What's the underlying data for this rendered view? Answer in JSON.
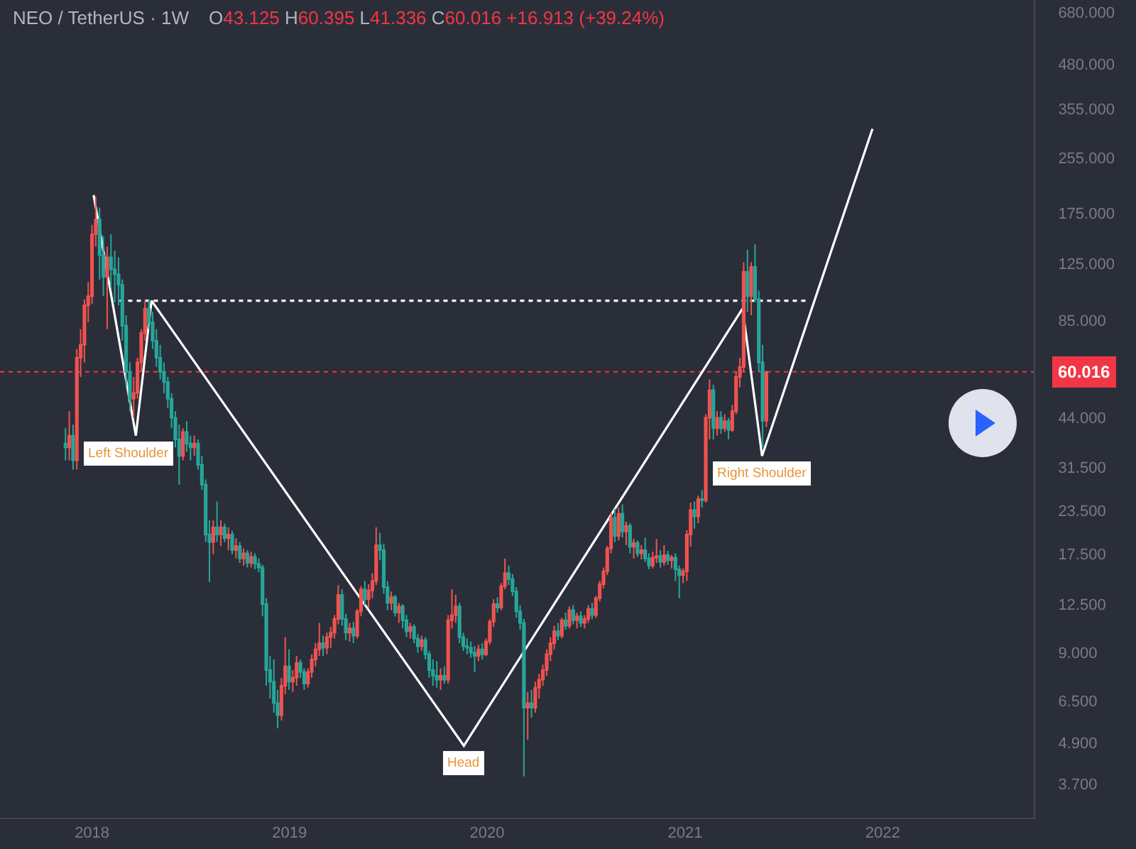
{
  "chart_data": {
    "type": "candlestick",
    "title": "NEO / TetherUS · 1W",
    "subtitle": "O43.125 H60.395 L41.336 C60.016 +16.913 (+39.24%)",
    "x": [
      "2017-11-13",
      "2017-11-20",
      "2017-11-27",
      "2017-12-04",
      "2017-12-11",
      "2017-12-18",
      "2017-12-25",
      "2018-01-01",
      "2018-01-08",
      "2018-01-15",
      "2018-01-22",
      "2018-01-29",
      "2018-02-05",
      "2018-02-12",
      "2018-02-19",
      "2018-02-26",
      "2018-03-05",
      "2018-03-12",
      "2018-03-19",
      "2018-03-26",
      "2018-04-02",
      "2018-04-09",
      "2018-04-16",
      "2018-04-23",
      "2018-04-30",
      "2018-05-07",
      "2018-05-14",
      "2018-05-21",
      "2018-05-28",
      "2018-06-04",
      "2018-06-11",
      "2018-06-18",
      "2018-06-25",
      "2018-07-02",
      "2018-07-09",
      "2018-07-16",
      "2018-07-23",
      "2018-07-30",
      "2018-08-06",
      "2018-08-13",
      "2018-08-20",
      "2018-08-27",
      "2018-09-03",
      "2018-09-10",
      "2018-09-17",
      "2018-09-24",
      "2018-10-01",
      "2018-10-08",
      "2018-10-15",
      "2018-10-22",
      "2018-10-29",
      "2018-11-05",
      "2018-11-12",
      "2018-11-19",
      "2018-11-26",
      "2018-12-03",
      "2018-12-10",
      "2018-12-17",
      "2018-12-24",
      "2018-12-31",
      "2019-01-07",
      "2019-01-14",
      "2019-01-21",
      "2019-01-28",
      "2019-02-04",
      "2019-02-11",
      "2019-02-18",
      "2019-02-25",
      "2019-03-04",
      "2019-03-11",
      "2019-03-18",
      "2019-03-25",
      "2019-04-01",
      "2019-04-08",
      "2019-04-15",
      "2019-04-22",
      "2019-04-29",
      "2019-05-06",
      "2019-05-13",
      "2019-05-20",
      "2019-05-27",
      "2019-06-03",
      "2019-06-10",
      "2019-06-17",
      "2019-06-24",
      "2019-07-01",
      "2019-07-08",
      "2019-07-15",
      "2019-07-22",
      "2019-07-29",
      "2019-08-05",
      "2019-08-12",
      "2019-08-19",
      "2019-08-26",
      "2019-09-02",
      "2019-09-09",
      "2019-09-16",
      "2019-09-23",
      "2019-09-30",
      "2019-10-07",
      "2019-10-14",
      "2019-10-21",
      "2019-10-28",
      "2019-11-04",
      "2019-11-11",
      "2019-11-18",
      "2019-11-25",
      "2019-12-02",
      "2019-12-09",
      "2019-12-16",
      "2019-12-23",
      "2019-12-30",
      "2020-01-06",
      "2020-01-13",
      "2020-01-20",
      "2020-01-27",
      "2020-02-03",
      "2020-02-10",
      "2020-02-17",
      "2020-02-24",
      "2020-03-02",
      "2020-03-09",
      "2020-03-16",
      "2020-03-23",
      "2020-03-30",
      "2020-04-06",
      "2020-04-13",
      "2020-04-20",
      "2020-04-27",
      "2020-05-04",
      "2020-05-11",
      "2020-05-18",
      "2020-05-25",
      "2020-06-01",
      "2020-06-08",
      "2020-06-15",
      "2020-06-22",
      "2020-06-29",
      "2020-07-06",
      "2020-07-13",
      "2020-07-20",
      "2020-07-27",
      "2020-08-03",
      "2020-08-10",
      "2020-08-17",
      "2020-08-24",
      "2020-08-31",
      "2020-09-07",
      "2020-09-14",
      "2020-09-21",
      "2020-09-28",
      "2020-10-05",
      "2020-10-12",
      "2020-10-19",
      "2020-10-26",
      "2020-11-02",
      "2020-11-09",
      "2020-11-16",
      "2020-11-23",
      "2020-11-30",
      "2020-12-07",
      "2020-12-14",
      "2020-12-21",
      "2020-12-28",
      "2021-01-04",
      "2021-01-11",
      "2021-01-18",
      "2021-01-25",
      "2021-02-01",
      "2021-02-08",
      "2021-02-15",
      "2021-02-22",
      "2021-03-01",
      "2021-03-08",
      "2021-03-15",
      "2021-03-22",
      "2021-03-29",
      "2021-04-05",
      "2021-04-12",
      "2021-04-19",
      "2021-04-26",
      "2021-05-03",
      "2021-05-10",
      "2021-05-17",
      "2021-05-24",
      "2021-05-31"
    ],
    "ohlc": [
      [
        37,
        41,
        33,
        36
      ],
      [
        36,
        46,
        33,
        39
      ],
      [
        39,
        42,
        31,
        33
      ],
      [
        33,
        70,
        31,
        66
      ],
      [
        66,
        80,
        58,
        72
      ],
      [
        72,
        98,
        64,
        94
      ],
      [
        94,
        110,
        84,
        100
      ],
      [
        100,
        162,
        95,
        152
      ],
      [
        152,
        196,
        140,
        168
      ],
      [
        168,
        182,
        112,
        132
      ],
      [
        132,
        150,
        100,
        114
      ],
      [
        114,
        140,
        80,
        130
      ],
      [
        130,
        152,
        106,
        120
      ],
      [
        120,
        136,
        96,
        116
      ],
      [
        116,
        130,
        94,
        108
      ],
      [
        108,
        112,
        74,
        82
      ],
      [
        82,
        88,
        54,
        60
      ],
      [
        60,
        64,
        46,
        50
      ],
      [
        50,
        58,
        44,
        52
      ],
      [
        52,
        66,
        50,
        64
      ],
      [
        64,
        80,
        60,
        78
      ],
      [
        78,
        97,
        74,
        92
      ],
      [
        92,
        98,
        80,
        84
      ],
      [
        84,
        90,
        70,
        74
      ],
      [
        74,
        80,
        62,
        66
      ],
      [
        66,
        72,
        57,
        60
      ],
      [
        60,
        64,
        52,
        56
      ],
      [
        56,
        58,
        47,
        50
      ],
      [
        50,
        52,
        41,
        44
      ],
      [
        44,
        46,
        36,
        38
      ],
      [
        38,
        42,
        28,
        34
      ],
      [
        34,
        41,
        33,
        40
      ],
      [
        40,
        43,
        35,
        37
      ],
      [
        37,
        39,
        33,
        36
      ],
      [
        36,
        39,
        34,
        37
      ],
      [
        37,
        38,
        31,
        32
      ],
      [
        32,
        34,
        27,
        28
      ],
      [
        28,
        29,
        19,
        20
      ],
      [
        20,
        22,
        14.5,
        19
      ],
      [
        19,
        22,
        17.5,
        21
      ],
      [
        21,
        25,
        19,
        20
      ],
      [
        20,
        22,
        18.5,
        21
      ],
      [
        21,
        21.5,
        19,
        19.5
      ],
      [
        19.5,
        21,
        18,
        20
      ],
      [
        20,
        20.5,
        17.5,
        18
      ],
      [
        18,
        19.5,
        17,
        18.5
      ],
      [
        18.5,
        19,
        16.5,
        17
      ],
      [
        17,
        18.2,
        16.2,
        17.6
      ],
      [
        17.6,
        18,
        16,
        16.5
      ],
      [
        16.5,
        17.8,
        16,
        17.2
      ],
      [
        17.2,
        17.6,
        15.8,
        16.4
      ],
      [
        16.4,
        17,
        15.5,
        16
      ],
      [
        16,
        16.3,
        11.5,
        12.5
      ],
      [
        12.5,
        13,
        7.2,
        8
      ],
      [
        8,
        8.8,
        6.6,
        7.4
      ],
      [
        7.4,
        8.6,
        6,
        6.4
      ],
      [
        6.4,
        7,
        5.4,
        5.9
      ],
      [
        5.9,
        7.6,
        5.7,
        7.2
      ],
      [
        7.2,
        10,
        6.8,
        8.2
      ],
      [
        8.2,
        9.2,
        7,
        7.4
      ],
      [
        7.4,
        8,
        6.9,
        7.6
      ],
      [
        7.6,
        8.8,
        7.2,
        8.4
      ],
      [
        8.4,
        8.6,
        7.6,
        7.9
      ],
      [
        7.9,
        8.1,
        7,
        7.3
      ],
      [
        7.3,
        8.1,
        7.1,
        7.9
      ],
      [
        7.9,
        8.9,
        7.6,
        8.6
      ],
      [
        8.6,
        9.6,
        8.2,
        9.2
      ],
      [
        9.2,
        11,
        8.8,
        9.6
      ],
      [
        9.6,
        10.1,
        8.8,
        9.3
      ],
      [
        9.3,
        10.3,
        8.9,
        10
      ],
      [
        10,
        10.7,
        9.3,
        10.3
      ],
      [
        10.3,
        11.6,
        9.9,
        11.3
      ],
      [
        11.3,
        14.2,
        10.9,
        13.3
      ],
      [
        13.3,
        13.8,
        10.8,
        11.3
      ],
      [
        11.3,
        11.7,
        9.8,
        10.3
      ],
      [
        10.3,
        11,
        9.7,
        10.6
      ],
      [
        10.6,
        11.1,
        9.6,
        10.1
      ],
      [
        10.1,
        12.1,
        9.9,
        11.9
      ],
      [
        11.9,
        14.1,
        11.5,
        13.8
      ],
      [
        13.8,
        14.6,
        12.4,
        12.9
      ],
      [
        12.9,
        14.3,
        12.2,
        13.7
      ],
      [
        13.7,
        15.4,
        13,
        14.6
      ],
      [
        14.6,
        21,
        14.2,
        18.6
      ],
      [
        18.6,
        20.2,
        16.8,
        18
      ],
      [
        18,
        18.8,
        13.4,
        14
      ],
      [
        14,
        14.6,
        12,
        12.6
      ],
      [
        12.6,
        13.6,
        12,
        13.1
      ],
      [
        13.1,
        13.3,
        11.5,
        11.8
      ],
      [
        11.8,
        12.6,
        11,
        12.3
      ],
      [
        12.3,
        12.5,
        10.6,
        11.2
      ],
      [
        11.2,
        11.6,
        10,
        10.4
      ],
      [
        10.4,
        11,
        9.9,
        10.7
      ],
      [
        10.7,
        10.9,
        9.6,
        9.9
      ],
      [
        9.9,
        10.2,
        9,
        9.4
      ],
      [
        9.4,
        10.1,
        9.1,
        9.8
      ],
      [
        9.8,
        10,
        8.6,
        8.9
      ],
      [
        8.9,
        9.1,
        7.6,
        8
      ],
      [
        8,
        8.6,
        7.2,
        7.7
      ],
      [
        7.7,
        8.5,
        7.1,
        7.5
      ],
      [
        7.5,
        8.1,
        7,
        7.7
      ],
      [
        7.7,
        8.2,
        7.3,
        7.5
      ],
      [
        7.5,
        11.6,
        7.3,
        11.2
      ],
      [
        11.2,
        13.8,
        10.6,
        11.6
      ],
      [
        11.6,
        13.3,
        11,
        12.3
      ],
      [
        12.3,
        12.6,
        9.6,
        10
      ],
      [
        10,
        10.3,
        9.1,
        9.4
      ],
      [
        9.4,
        9.9,
        8.9,
        9.3
      ],
      [
        9.3,
        9.7,
        8.7,
        9
      ],
      [
        9,
        9.4,
        7.9,
        8.8
      ],
      [
        8.8,
        9.5,
        8.5,
        9.2
      ],
      [
        9.2,
        9.6,
        8.6,
        8.9
      ],
      [
        8.9,
        9.9,
        8.8,
        9.7
      ],
      [
        9.7,
        11.3,
        9.5,
        11.1
      ],
      [
        11.1,
        12.9,
        10.7,
        12.5
      ],
      [
        12.5,
        13.1,
        11.8,
        12.2
      ],
      [
        12.2,
        14.4,
        12,
        14.1
      ],
      [
        14.1,
        17,
        13.8,
        15.4
      ],
      [
        15.4,
        16.2,
        14.2,
        14.8
      ],
      [
        14.8,
        15.3,
        13.2,
        13.6
      ],
      [
        13.6,
        14,
        11.4,
        11.9
      ],
      [
        11.9,
        12.4,
        10.5,
        11
      ],
      [
        11,
        11.3,
        3.9,
        6.2
      ],
      [
        6.2,
        6.9,
        5,
        6.4
      ],
      [
        6.4,
        7,
        5.8,
        6.2
      ],
      [
        6.2,
        7.4,
        6,
        7.1
      ],
      [
        7.1,
        7.8,
        6.6,
        7.5
      ],
      [
        7.5,
        8.3,
        7.2,
        8
      ],
      [
        8,
        9.2,
        7.7,
        8.9
      ],
      [
        8.9,
        10,
        8.5,
        9.6
      ],
      [
        9.6,
        10.8,
        9.2,
        10.4
      ],
      [
        10.4,
        11,
        9.8,
        10.1
      ],
      [
        10.1,
        11.4,
        9.9,
        11.2
      ],
      [
        11.2,
        11.8,
        10.5,
        10.8
      ],
      [
        10.8,
        12.3,
        10.6,
        12
      ],
      [
        12,
        12.4,
        10.9,
        11.2
      ],
      [
        11.2,
        11.8,
        10.6,
        11.5
      ],
      [
        11.5,
        11.9,
        10.7,
        11
      ],
      [
        11,
        11.6,
        10.6,
        11.3
      ],
      [
        11.3,
        12.4,
        11,
        12.1
      ],
      [
        12.1,
        12.6,
        11.3,
        11.6
      ],
      [
        11.6,
        13.2,
        11.4,
        13
      ],
      [
        13,
        14.6,
        12.7,
        14.3
      ],
      [
        14.3,
        16,
        13.9,
        15.6
      ],
      [
        15.6,
        18.5,
        15.2,
        18.2
      ],
      [
        18.2,
        23.2,
        17.6,
        22.4
      ],
      [
        22.4,
        23.8,
        19,
        19.8
      ],
      [
        19.8,
        24,
        19.2,
        23
      ],
      [
        23,
        24.5,
        19.6,
        20.4
      ],
      [
        20.4,
        21.8,
        18.6,
        21.2
      ],
      [
        21.2,
        21.6,
        17.6,
        18.4
      ],
      [
        18.4,
        19.4,
        17,
        18.9
      ],
      [
        18.9,
        19.2,
        17.2,
        17.6
      ],
      [
        17.6,
        18.6,
        16.9,
        18
      ],
      [
        18,
        19.6,
        16.6,
        17
      ],
      [
        17,
        17.6,
        15.8,
        16.2
      ],
      [
        16.2,
        17.8,
        15.9,
        17.1
      ],
      [
        17.1,
        19.4,
        16.5,
        17.3
      ],
      [
        17.3,
        18,
        16,
        16.6
      ],
      [
        16.6,
        18.6,
        16.2,
        17.4
      ],
      [
        17.4,
        17.9,
        16.3,
        16.8
      ],
      [
        16.8,
        17.4,
        15.9,
        17.1
      ],
      [
        17.1,
        17.6,
        14.6,
        15.8
      ],
      [
        15.8,
        16.2,
        13,
        15.2
      ],
      [
        15.2,
        15.9,
        14.4,
        15.6
      ],
      [
        15.6,
        20.6,
        14.6,
        20
      ],
      [
        20,
        24.8,
        18.4,
        23.6
      ],
      [
        23.6,
        25,
        20.8,
        22.6
      ],
      [
        22.6,
        26,
        21.6,
        25.4
      ],
      [
        25.4,
        27,
        24,
        25.2
      ],
      [
        25.2,
        45,
        24.8,
        44
      ],
      [
        44,
        57,
        38,
        53
      ],
      [
        53,
        55,
        38,
        41
      ],
      [
        41,
        46,
        39,
        44
      ],
      [
        44,
        46,
        39.5,
        41
      ],
      [
        41,
        45,
        40,
        43
      ],
      [
        43,
        44,
        38,
        40.5
      ],
      [
        40.5,
        48,
        40,
        46
      ],
      [
        46,
        60,
        45,
        58
      ],
      [
        58,
        66,
        54,
        62
      ],
      [
        62,
        126,
        60,
        118
      ],
      [
        118,
        137,
        90,
        100
      ],
      [
        100,
        126,
        88,
        122
      ],
      [
        122,
        142,
        96,
        98
      ],
      [
        98,
        104,
        60,
        64
      ],
      [
        64,
        72,
        36,
        43.125
      ],
      [
        43.125,
        60.395,
        41.336,
        60.016
      ]
    ],
    "colors": [
      "#26a69a",
      "#ef5350",
      "#26a69a",
      "#ef5350",
      "#ef5350",
      "#ef5350",
      "#ef5350",
      "#ef5350",
      "#ef5350",
      "#26a69a",
      "#26a69a",
      "#ef5350",
      "#26a69a",
      "#26a69a",
      "#26a69a",
      "#26a69a",
      "#26a69a",
      "#26a69a",
      "#ef5350",
      "#ef5350",
      "#ef5350",
      "#ef5350",
      "#26a69a",
      "#26a69a",
      "#26a69a",
      "#26a69a",
      "#26a69a",
      "#26a69a",
      "#26a69a",
      "#26a69a",
      "#26a69a",
      "#ef5350",
      "#26a69a",
      "#26a69a",
      "#ef5350",
      "#26a69a",
      "#26a69a",
      "#26a69a",
      "#26a69a",
      "#ef5350",
      "#26a69a",
      "#ef5350",
      "#26a69a",
      "#ef5350",
      "#26a69a",
      "#ef5350",
      "#26a69a",
      "#ef5350",
      "#26a69a",
      "#ef5350",
      "#26a69a",
      "#26a69a",
      "#26a69a",
      "#26a69a",
      "#26a69a",
      "#26a69a",
      "#26a69a",
      "#ef5350",
      "#ef5350",
      "#26a69a",
      "#ef5350",
      "#ef5350",
      "#26a69a",
      "#26a69a",
      "#ef5350",
      "#ef5350",
      "#ef5350",
      "#ef5350",
      "#26a69a",
      "#ef5350",
      "#ef5350",
      "#ef5350",
      "#ef5350",
      "#26a69a",
      "#26a69a",
      "#ef5350",
      "#26a69a",
      "#ef5350",
      "#ef5350",
      "#26a69a",
      "#ef5350",
      "#ef5350",
      "#ef5350",
      "#26a69a",
      "#26a69a",
      "#26a69a",
      "#ef5350",
      "#26a69a",
      "#ef5350",
      "#26a69a",
      "#26a69a",
      "#ef5350",
      "#26a69a",
      "#26a69a",
      "#ef5350",
      "#26a69a",
      "#26a69a",
      "#26a69a",
      "#26a69a",
      "#ef5350",
      "#26a69a",
      "#ef5350",
      "#ef5350",
      "#ef5350",
      "#26a69a",
      "#26a69a",
      "#26a69a",
      "#26a69a",
      "#26a69a",
      "#ef5350",
      "#26a69a",
      "#ef5350",
      "#ef5350",
      "#ef5350",
      "#26a69a",
      "#ef5350",
      "#ef5350",
      "#26a69a",
      "#26a69a",
      "#26a69a",
      "#26a69a",
      "#26a69a",
      "#ef5350",
      "#26a69a",
      "#ef5350",
      "#ef5350",
      "#ef5350",
      "#ef5350",
      "#ef5350",
      "#ef5350",
      "#26a69a",
      "#ef5350",
      "#26a69a",
      "#ef5350",
      "#26a69a",
      "#ef5350",
      "#26a69a",
      "#ef5350",
      "#ef5350",
      "#26a69a",
      "#ef5350",
      "#ef5350",
      "#ef5350",
      "#ef5350",
      "#ef5350",
      "#26a69a",
      "#ef5350",
      "#26a69a",
      "#ef5350",
      "#26a69a",
      "#ef5350",
      "#26a69a",
      "#ef5350",
      "#26a69a",
      "#26a69a",
      "#ef5350",
      "#ef5350",
      "#26a69a",
      "#ef5350",
      "#26a69a",
      "#ef5350",
      "#26a69a",
      "#26a69a",
      "#ef5350",
      "#ef5350",
      "#ef5350",
      "#26a69a",
      "#ef5350",
      "#26a69a",
      "#ef5350",
      "#ef5350",
      "#26a69a",
      "#ef5350",
      "#26a69a",
      "#ef5350",
      "#26a69a",
      "#ef5350",
      "#ef5350",
      "#ef5350",
      "#ef5350",
      "#26a69a",
      "#ef5350",
      "#26a69a",
      "#26a69a",
      "#26a69a",
      "#ef5350"
    ],
    "series": [
      {
        "type": "line",
        "x": [
          "2018-01-04",
          "2018-03-23",
          "2018-04-21",
          "2019-11-19",
          "2021-04-17",
          "2021-05-23",
          "2021-12-13"
        ],
        "values": [
          198,
          39,
          97,
          4.8,
          92,
          34,
          310
        ],
        "color": "#ffffff"
      },
      {
        "type": "line",
        "x": [
          "2018-02-21",
          "2021-08-16"
        ],
        "values": [
          97,
          97
        ],
        "color": "#ffffff",
        "line_style": "dotted"
      }
    ],
    "annotations": [
      {
        "text": "Left Shoulder",
        "x": "2018-03-23",
        "y": 39
      },
      {
        "text": "Head",
        "x": "2019-11-19",
        "y": 4.8
      },
      {
        "text": "Right Shoulder",
        "x": "2021-05-23",
        "y": 34
      }
    ],
    "ref_lines": [
      {
        "axis": "y",
        "value": 60.016,
        "label": "60.016",
        "color": "#f23645",
        "line_style": "dotted"
      }
    ],
    "xlim": [
      "2017-07-15",
      "2022-10-07"
    ],
    "xticks": [
      "2018",
      "2019",
      "2020",
      "2021",
      "2022"
    ],
    "ylim": [
      2.95,
      740
    ],
    "yticks": [
      {
        "value": 3.7,
        "label": "3.700"
      },
      {
        "value": 4.9,
        "label": "4.900"
      },
      {
        "value": 6.5,
        "label": "6.500"
      },
      {
        "value": 9,
        "label": "9.000"
      },
      {
        "value": 12.5,
        "label": "12.500"
      },
      {
        "value": 17.5,
        "label": "17.500"
      },
      {
        "value": 23.5,
        "label": "23.500"
      },
      {
        "value": 31.5,
        "label": "31.500"
      },
      {
        "value": 44,
        "label": "44.000"
      },
      {
        "value": 85,
        "label": "85.000"
      },
      {
        "value": 125,
        "label": "125.000"
      },
      {
        "value": 175,
        "label": "175.000"
      },
      {
        "value": 255,
        "label": "255.000"
      },
      {
        "value": 355,
        "label": "355.000"
      },
      {
        "value": 480,
        "label": "480.000"
      },
      {
        "value": 680,
        "label": "680.000"
      }
    ],
    "log": true
  }
}
